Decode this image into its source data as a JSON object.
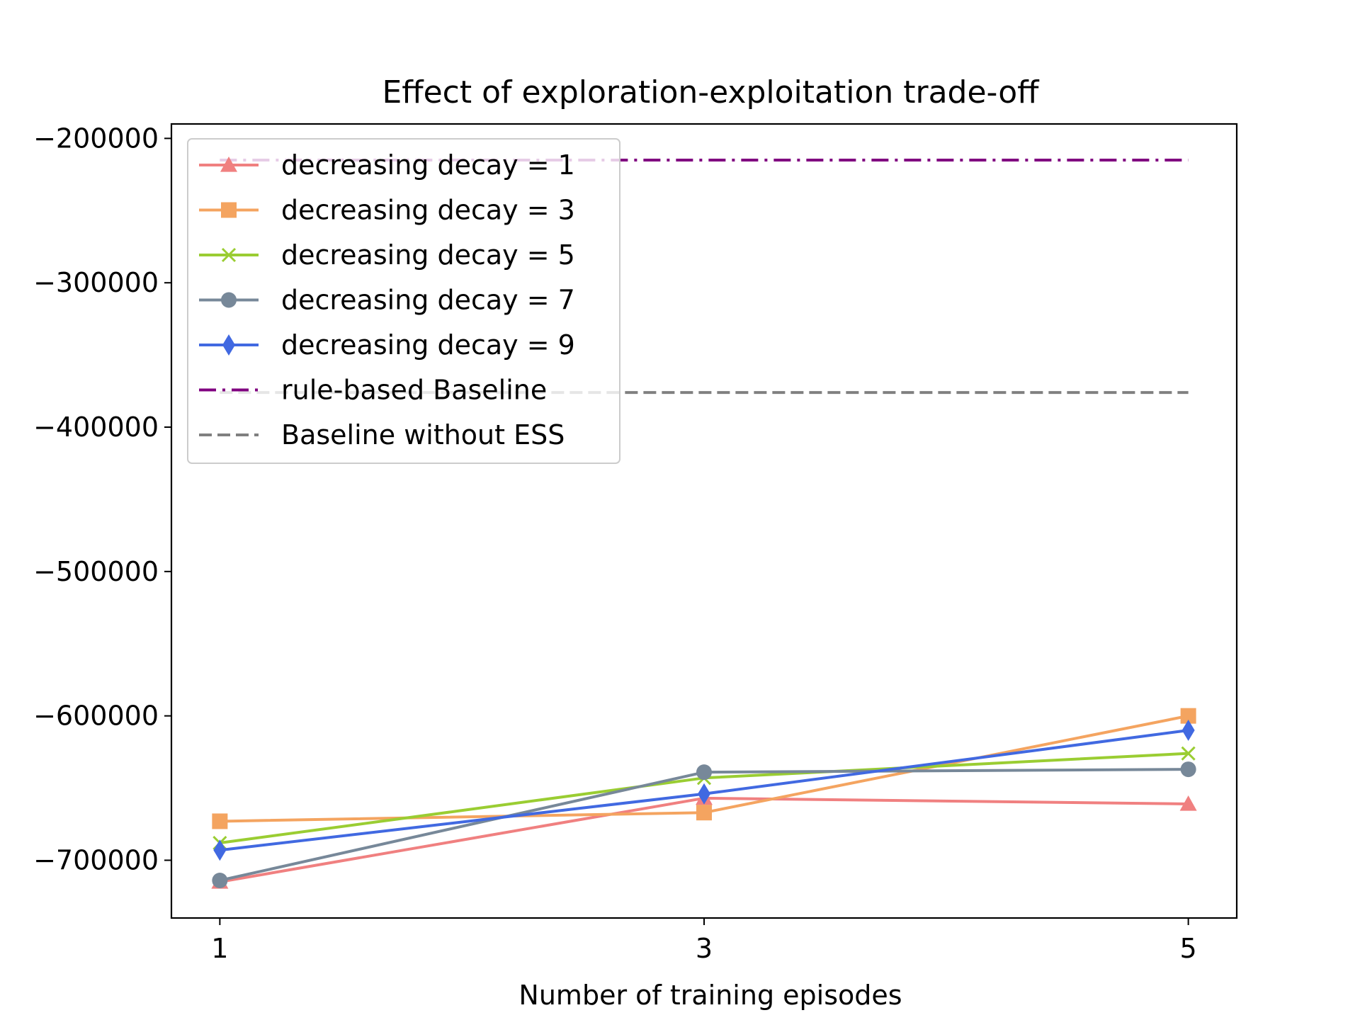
{
  "chart_data": {
    "type": "line",
    "title": "Effect of exploration-exploitation trade-off",
    "xlabel": "Number of training episodes",
    "ylabel": "",
    "x": [
      1,
      3,
      5
    ],
    "xticks": [
      "1",
      "3",
      "5"
    ],
    "yticks": [
      -200000,
      -300000,
      -400000,
      -500000,
      -600000,
      -700000
    ],
    "ytick_labels": [
      "−200000",
      "−300000",
      "−400000",
      "−500000",
      "−600000",
      "−700000"
    ],
    "xlim": [
      0.8,
      5.2
    ],
    "ylim": [
      -740000,
      -190000
    ],
    "legend_position": "upper-left",
    "grid": false,
    "series": [
      {
        "name": "decreasing decay = 1",
        "color": "#f08080",
        "marker": "triangle",
        "values": [
          -715000,
          -657000,
          -661000
        ]
      },
      {
        "name": "decreasing decay = 3",
        "color": "#f4a460",
        "marker": "square",
        "values": [
          -673000,
          -667000,
          -600000
        ]
      },
      {
        "name": "decreasing decay = 5",
        "color": "#9acd32",
        "marker": "x",
        "values": [
          -688000,
          -643000,
          -626000
        ]
      },
      {
        "name": "decreasing decay = 7",
        "color": "#778899",
        "marker": "circle",
        "values": [
          -714000,
          -639000,
          -637000
        ]
      },
      {
        "name": "decreasing decay = 9",
        "color": "#4169e1",
        "marker": "diamond",
        "values": [
          -693000,
          -654000,
          -610000
        ]
      }
    ],
    "baselines": [
      {
        "name": "rule-based Baseline",
        "color": "#800080",
        "dash": "dashdot",
        "value": -215000
      },
      {
        "name": "Baseline without ESS",
        "color": "#808080",
        "dash": "dashed",
        "value": -376000
      }
    ]
  }
}
